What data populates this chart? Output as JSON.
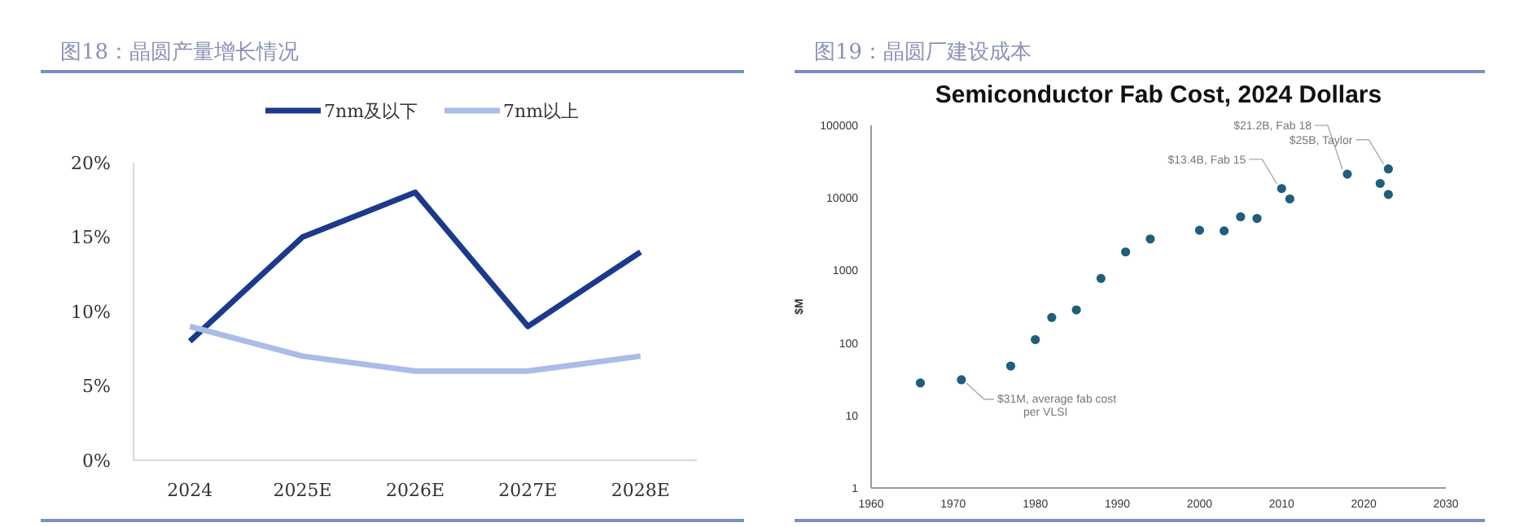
{
  "chart_data": [
    {
      "type": "line",
      "title": "图18：晶圆产量增长情况",
      "categories": [
        "2024",
        "2025E",
        "2026E",
        "2027E",
        "2028E"
      ],
      "series": [
        {
          "name": "7nm及以下",
          "color": "#1b3a8c",
          "values": [
            8,
            15,
            18,
            9,
            14
          ]
        },
        {
          "name": "7nm以上",
          "color": "#a9bde6",
          "values": [
            9,
            7,
            6,
            6,
            7
          ]
        }
      ],
      "ylim": [
        0,
        20
      ],
      "yticks": [
        {
          "value": 0,
          "label": "0%"
        },
        {
          "value": 5,
          "label": "5%"
        },
        {
          "value": 10,
          "label": "10%"
        },
        {
          "value": 15,
          "label": "15%"
        },
        {
          "value": 20,
          "label": "20%"
        }
      ],
      "legend": "top",
      "line_style": "solid"
    },
    {
      "type": "scatter",
      "title": "图19：晶圆厂建设成本",
      "subtitle": "Semiconductor Fab Cost, 2024 Dollars",
      "ylabel": "$M",
      "x": [
        1966,
        1971,
        1977,
        1980,
        1982,
        1985,
        1988,
        1991,
        1994,
        2000,
        2003,
        2005,
        2007,
        2010,
        2011,
        2018,
        2022,
        2023,
        2023
      ],
      "series": [
        {
          "color": "#1f5f7a",
          "values": [
            28,
            31,
            48,
            111,
            224,
            285,
            773,
            1795,
            2710,
            3565,
            3500,
            5480,
            5200,
            13400,
            9660,
            21200,
            15800,
            25000,
            11100
          ]
        }
      ],
      "log": "y",
      "marker": "circle",
      "xlim": [
        1960,
        2030
      ],
      "xticks": [
        1960,
        1970,
        1980,
        1990,
        2000,
        2010,
        2020,
        2030
      ],
      "ylim": [
        1,
        100000
      ],
      "yticks": [
        1,
        10,
        100,
        1000,
        10000,
        100000
      ],
      "annotations": [
        {
          "text": "$31M, average fab cost per VLSI",
          "x": 1971,
          "y": 31
        },
        {
          "text": "$13.4B, Fab 15",
          "x": 2010,
          "y": 13400
        },
        {
          "text": "$21.2B, Fab 18",
          "x": 2018,
          "y": 21200
        },
        {
          "text": "$25B, Taylor",
          "x": 2023,
          "y": 25000
        }
      ]
    }
  ]
}
